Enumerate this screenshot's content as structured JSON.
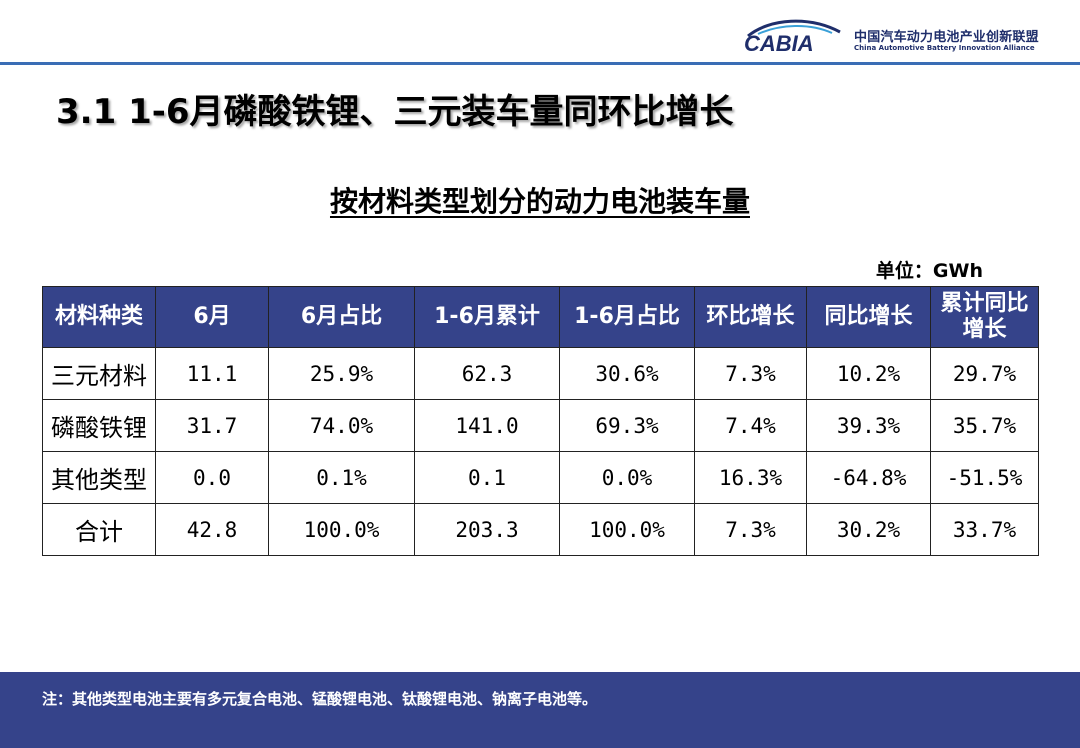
{
  "logo": {
    "wordmark": "CABIA",
    "name_cn": "中国汽车动力电池产业创新联盟",
    "name_en": "China Automotive Battery Innovation Alliance",
    "color": "#1f2e6b"
  },
  "slide_title": "3.1 1-6月磷酸铁锂、三元装车量同环比增长",
  "table": {
    "title": "按材料类型划分的动力电池装车量",
    "unit": "单位：GWh",
    "header_color": "#35438a",
    "columns": [
      "材料种类",
      "6月",
      "6月占比",
      "1-6月累计",
      "1-6月占比",
      "环比增长",
      "同比增长",
      "累计同比增长"
    ],
    "rows": [
      [
        "三元材料",
        "11.1",
        "25.9%",
        "62.3",
        "30.6%",
        "7.3%",
        "10.2%",
        "29.7%"
      ],
      [
        "磷酸铁锂",
        "31.7",
        "74.0%",
        "141.0",
        "69.3%",
        "7.4%",
        "39.3%",
        "35.7%"
      ],
      [
        "其他类型",
        "0.0",
        "0.1%",
        "0.1",
        "0.0%",
        "16.3%",
        "-64.8%",
        "-51.5%"
      ],
      [
        "合计",
        "42.8",
        "100.0%",
        "203.3",
        "100.0%",
        "7.3%",
        "30.2%",
        "33.7%"
      ]
    ]
  },
  "footer": {
    "note": "注：其他类型电池主要有多元复合电池、锰酸锂电池、钛酸锂电池、钠离子电池等。",
    "color": "#35438a"
  }
}
